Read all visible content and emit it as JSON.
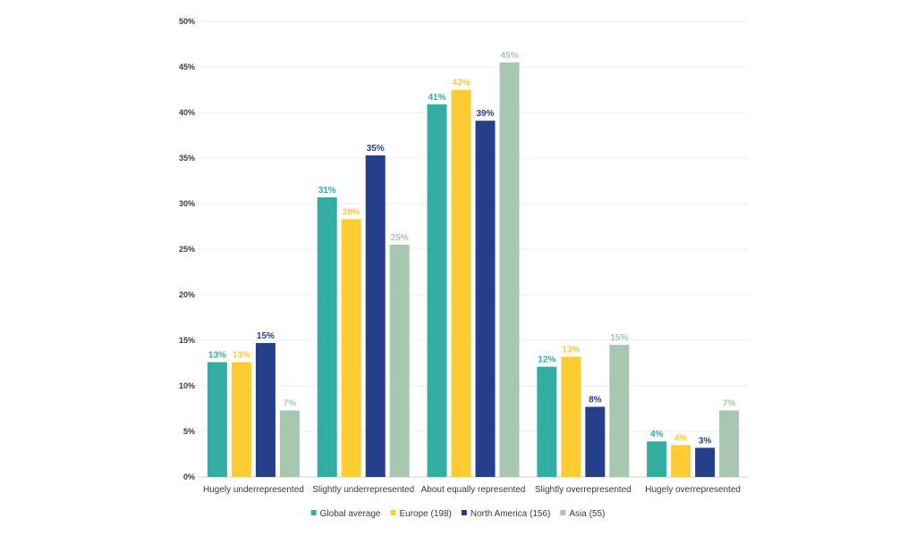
{
  "chart_data": {
    "type": "bar",
    "categories": [
      "Hugely underrepresented",
      "Slightly underrepresented",
      "About equally represented",
      "Slightly overrepresented",
      "Hugely overrepresented"
    ],
    "series": [
      {
        "name": "Global average",
        "color": "#34aea3",
        "values": [
          12.6,
          30.7,
          40.9,
          12.1,
          3.9
        ],
        "labels": [
          "13%",
          "31%",
          "41%",
          "12%",
          "4%"
        ]
      },
      {
        "name": "Europe (198)",
        "color": "#fdcb32",
        "values": [
          12.6,
          28.3,
          42.5,
          13.2,
          3.5
        ],
        "labels": [
          "13%",
          "28%",
          "42%",
          "13%",
          "4%"
        ]
      },
      {
        "name": "North America (156)",
        "color": "#243f8c",
        "values": [
          14.7,
          35.3,
          39.1,
          7.7,
          3.2
        ],
        "labels": [
          "15%",
          "35%",
          "39%",
          "8%",
          "3%"
        ]
      },
      {
        "name": "Asia (55)",
        "color": "#a8c7b1",
        "values": [
          7.3,
          25.5,
          45.5,
          14.5,
          7.3
        ],
        "labels": [
          "7%",
          "25%",
          "45%",
          "15%",
          "7%"
        ]
      }
    ],
    "ylim": [
      0,
      50
    ],
    "yticks": [
      "0%",
      "5%",
      "10%",
      "15%",
      "20%",
      "25%",
      "30%",
      "35%",
      "40%",
      "45%",
      "50%"
    ],
    "grid": true,
    "legend_position": "bottom",
    "title": "",
    "xlabel": "",
    "ylabel": ""
  }
}
